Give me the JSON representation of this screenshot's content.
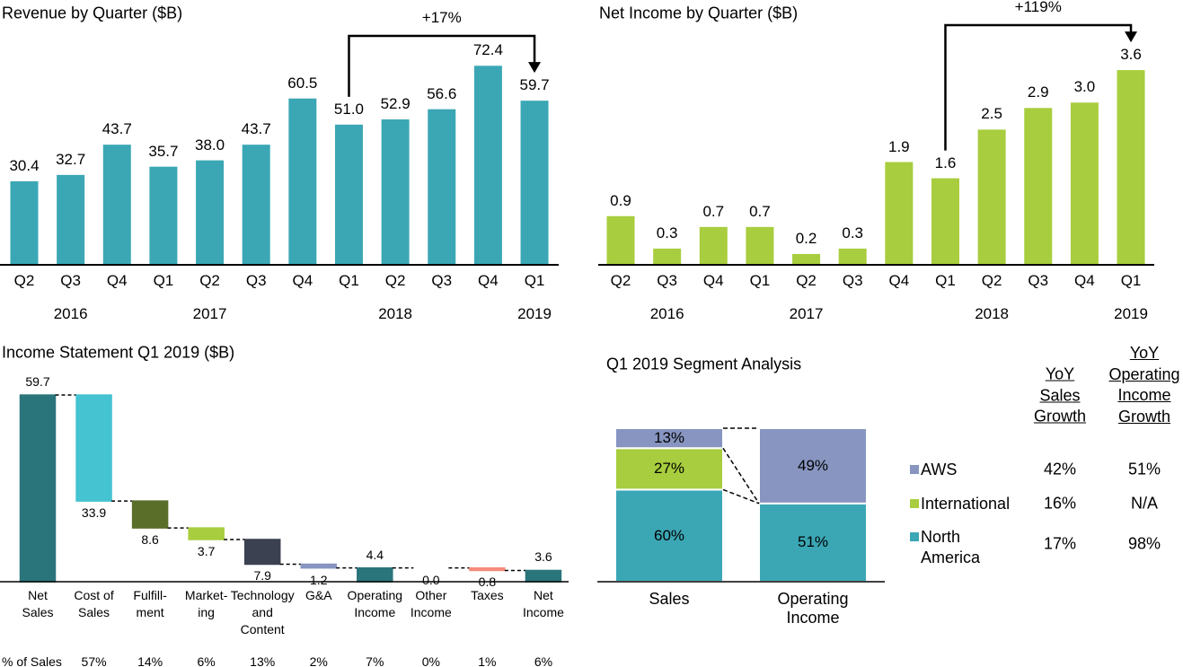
{
  "chart_data": [
    {
      "type": "bar",
      "title": "Revenue by Quarter ($B)",
      "categories": [
        "Q2",
        "Q3",
        "Q4",
        "Q1",
        "Q2",
        "Q3",
        "Q4",
        "Q1",
        "Q2",
        "Q3",
        "Q4",
        "Q1"
      ],
      "years": [
        null,
        "2016",
        null,
        null,
        "2017",
        null,
        null,
        null,
        "2018",
        null,
        null,
        "2019"
      ],
      "values": [
        30.4,
        32.7,
        43.7,
        35.7,
        38.0,
        43.7,
        60.5,
        51.0,
        52.9,
        56.6,
        72.4,
        59.7
      ],
      "value_labels": [
        "30.4",
        "32.7",
        "43.7",
        "35.7",
        "38.0",
        "43.7",
        "60.5",
        "51.0",
        "52.9",
        "56.6",
        "72.4",
        "59.7"
      ],
      "color": "#3ba7b5",
      "ylim": [
        0,
        80
      ],
      "annotation": "+17%"
    },
    {
      "type": "bar",
      "title": "Net Income by Quarter ($B)",
      "categories": [
        "Q2",
        "Q3",
        "Q4",
        "Q1",
        "Q2",
        "Q3",
        "Q4",
        "Q1",
        "Q2",
        "Q3",
        "Q4",
        "Q1"
      ],
      "years": [
        null,
        "2016",
        null,
        null,
        "2017",
        null,
        null,
        null,
        "2018",
        null,
        null,
        "2019"
      ],
      "values": [
        0.9,
        0.3,
        0.7,
        0.7,
        0.2,
        0.3,
        1.9,
        1.6,
        2.5,
        2.9,
        3.0,
        3.6
      ],
      "value_labels": [
        "0.9",
        "0.3",
        "0.7",
        "0.7",
        "0.2",
        "0.3",
        "1.9",
        "1.6",
        "2.5",
        "2.9",
        "3.0",
        "3.6"
      ],
      "color": "#a8cd3e",
      "ylim": [
        0,
        4
      ],
      "annotation": "+119%"
    },
    {
      "type": "waterfall",
      "title": "Income Statement Q1 2019 ($B)",
      "categories": [
        "Net\nSales",
        "Cost of\nSales",
        "Fulfill-\nment",
        "Market-\ning",
        "Technology\nand\nContent",
        "G&A",
        "Operating\nIncome",
        "Other\nIncome",
        "Taxes",
        "Net\nIncome"
      ],
      "measure": [
        "total",
        "decrease",
        "decrease",
        "decrease",
        "decrease",
        "decrease",
        "total",
        "decrease",
        "decrease",
        "total"
      ],
      "values": [
        59.7,
        33.9,
        8.6,
        3.7,
        7.9,
        1.2,
        4.4,
        0.0,
        0.8,
        3.6
      ],
      "value_labels": [
        "59.7",
        "33.9",
        "8.6",
        "3.7",
        "7.9",
        "1.2",
        "4.4",
        "0.0",
        "0.8",
        "3.6"
      ],
      "colors": [
        "#2a757b",
        "#45c3d1",
        "#5a6e2a",
        "#a8cd3e",
        "#3b4150",
        "#8795c0",
        "#2a757b",
        "#e2553a",
        "#f58c7c",
        "#2a757b"
      ],
      "ylim": [
        0,
        60
      ],
      "percent_of_sales": {
        "label": "% of Sales",
        "values": [
          null,
          57,
          14,
          6,
          13,
          2,
          7,
          0,
          1,
          6
        ],
        "value_labels": [
          null,
          "57%",
          "14%",
          "6%",
          "13%",
          "2%",
          "7%",
          "0%",
          "1%",
          "6%"
        ]
      }
    },
    {
      "type": "stacked_bar",
      "title": "Q1 2019 Segment Analysis",
      "categories": [
        "Sales",
        "Operating\nIncome"
      ],
      "series": [
        {
          "name": "North\nAmerica",
          "color": "#3ba7b5",
          "values": [
            60,
            51
          ],
          "value_labels": [
            "60%",
            "51%"
          ],
          "growth": [
            "17%",
            "98%"
          ]
        },
        {
          "name": "International",
          "color": "#a8cd3e",
          "values": [
            27,
            null
          ],
          "value_labels": [
            "27%",
            null
          ],
          "growth": [
            "16%",
            "N/A"
          ]
        },
        {
          "name": "AWS",
          "color": "#8795c0",
          "values": [
            13,
            49
          ],
          "value_labels": [
            "13%",
            "49%"
          ],
          "growth": [
            "42%",
            "51%"
          ]
        }
      ],
      "ylim": [
        0,
        100
      ],
      "table_columns": [
        "YoY\nSales\nGrowth",
        "YoY\nOperating\nIncome\nGrowth"
      ]
    }
  ]
}
